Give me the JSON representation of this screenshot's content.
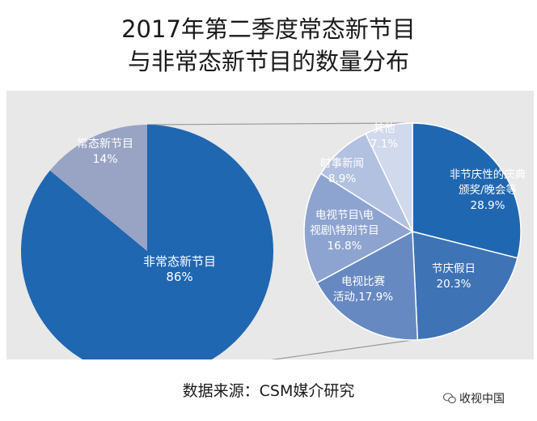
{
  "title": {
    "line1": "2017年第二季度常态新节目",
    "line2": "与非常态新节目的数量分布"
  },
  "source": "数据来源：CSM媒介研究",
  "watermark": "收视中国",
  "colors": {
    "background_band": "#e8e8e9",
    "dark_blue": "#1f67b1",
    "connector": "#9a9a9a"
  },
  "chart_data": [
    {
      "type": "pie",
      "slices": [
        {
          "label": "非常态新节目",
          "value_label": "86%",
          "value": 86,
          "color": "#1f67b1"
        },
        {
          "label": "常态新节目",
          "value_label": "14%",
          "value": 14,
          "color": "#99a3c4"
        }
      ]
    },
    {
      "type": "pie",
      "slices": [
        {
          "label_lines": [
            "非节庆性的庆典",
            "颁奖/晚会等"
          ],
          "value_label": "28.9%",
          "value": 28.9,
          "color": "#1f67b1"
        },
        {
          "label_lines": [
            "节庆假日"
          ],
          "value_label": "20.3%",
          "value": 20.3,
          "color": "#3e73b6"
        },
        {
          "label_lines": [
            "电视比赛",
            "活动,17.9%"
          ],
          "value_label": "",
          "value": 17.9,
          "color": "#6789c1"
        },
        {
          "label_lines": [
            "电视节目\\电",
            "视剧\\特别节目"
          ],
          "value_label": "16.8%",
          "value": 16.8,
          "color": "#8ea4d0"
        },
        {
          "label_lines": [
            "时事新闻"
          ],
          "value_label": "8.9%",
          "value": 8.9,
          "color": "#b2c1df"
        },
        {
          "label_lines": [
            "其他"
          ],
          "value_label": "7.1%",
          "value": 7.1,
          "color": "#d1d9ec"
        }
      ]
    }
  ]
}
